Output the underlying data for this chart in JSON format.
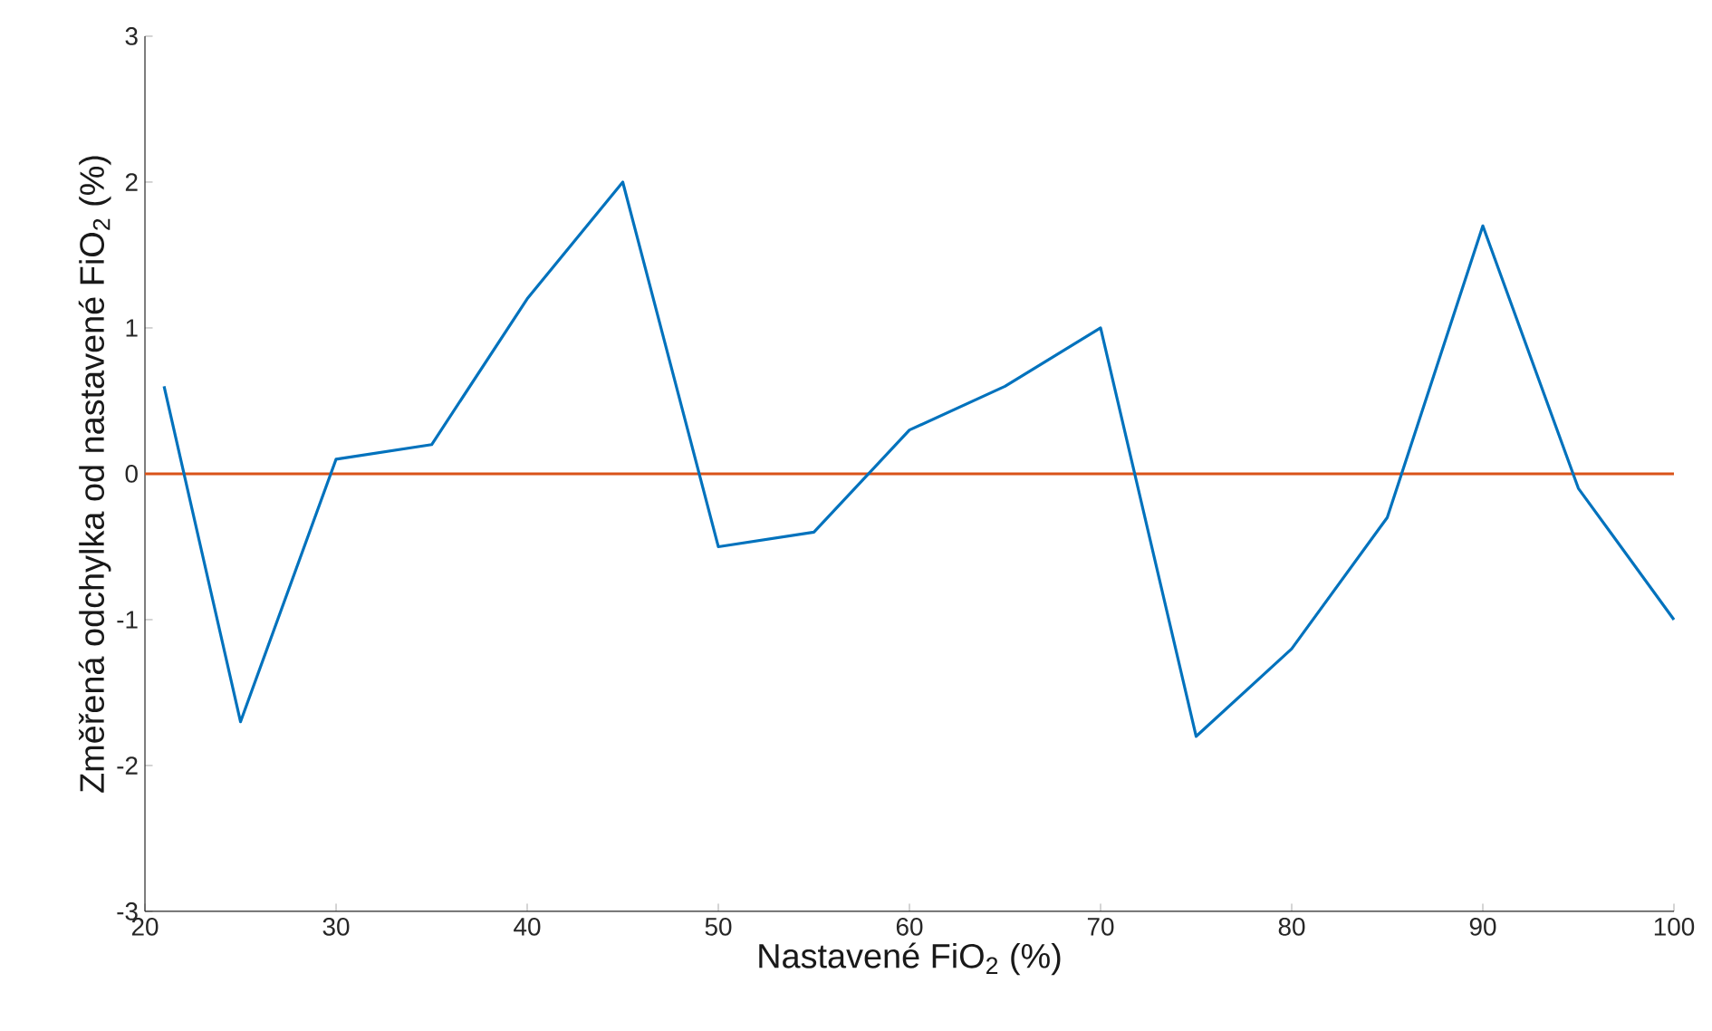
{
  "chart_data": {
    "type": "line",
    "xlabel": "Nastavené FiO$_{2}$ (%)",
    "ylabel": "Změřená odchylka od nastavené FiO$_{2}$ (%)",
    "x": [
      21,
      25,
      30,
      35,
      40,
      45,
      50,
      55,
      60,
      65,
      70,
      75,
      80,
      85,
      90,
      95,
      100
    ],
    "series": [
      {
        "color": "#0072bd",
        "values": [
          0.6,
          -1.7,
          0.1,
          0.2,
          1.2,
          2.0,
          -0.5,
          -0.4,
          0.3,
          0.6,
          1.0,
          -1.8,
          -1.2,
          -0.3,
          1.7,
          -0.1,
          -1.0
        ]
      }
    ],
    "xlim": [
      20,
      100
    ],
    "ylim": [
      -3,
      3
    ],
    "xticks": [
      20,
      30,
      40,
      50,
      60,
      70,
      80,
      90,
      100
    ],
    "yticks": [
      -3,
      -2,
      -1,
      0,
      1,
      2,
      3
    ],
    "ref_lines": [
      {
        "axis": "y",
        "value": 0,
        "color": "#d95319"
      }
    ],
    "marker": "none",
    "line_style": "solid"
  }
}
